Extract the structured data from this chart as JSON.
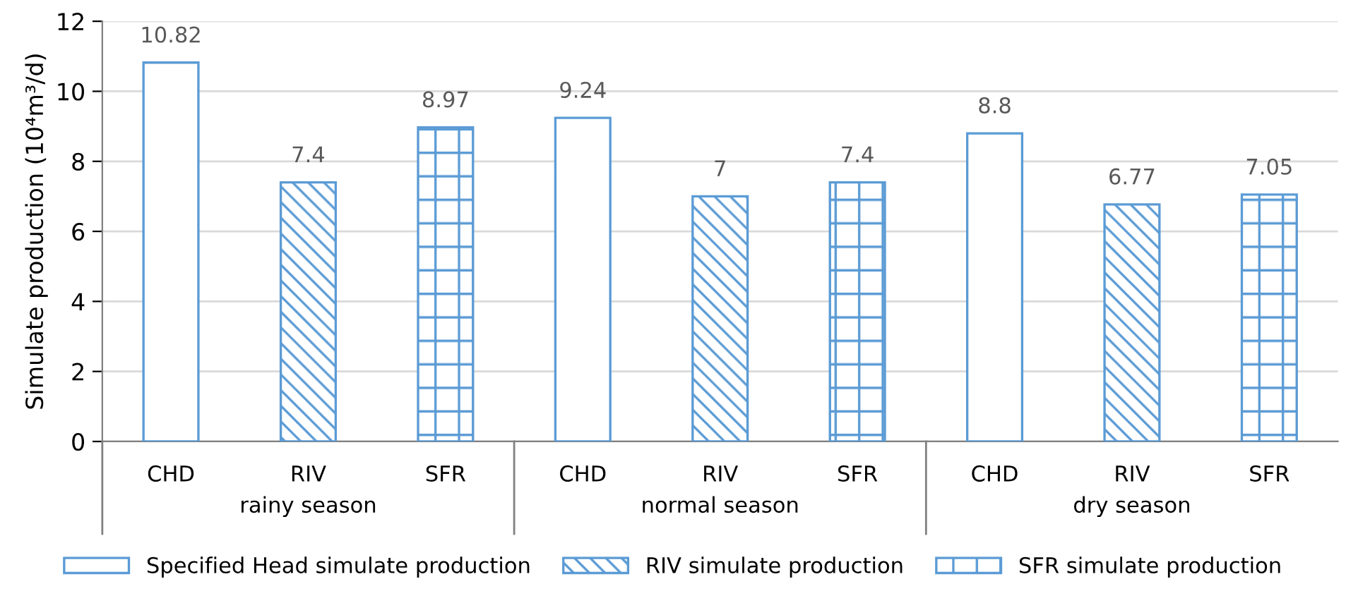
{
  "chart_data": {
    "type": "bar",
    "ylabel": "Simulate production (10⁴m³/d)",
    "categories": [
      "CHD",
      "RIV",
      "SFR",
      "CHD",
      "RIV",
      "SFR",
      "CHD",
      "RIV",
      "SFR"
    ],
    "series": [
      {
        "name": "Specified Head simulate production",
        "color": "#5b9bd5",
        "values": [
          10.82,
          null,
          null,
          9.24,
          null,
          null,
          8.8,
          null,
          null
        ]
      },
      {
        "name": "RIV simulate production",
        "color": "#5b9bd5",
        "values": [
          null,
          7.4,
          null,
          null,
          7,
          null,
          null,
          6.77,
          null
        ]
      },
      {
        "name": "SFR simulate production",
        "color": "#5b9bd5",
        "values": [
          null,
          null,
          8.97,
          null,
          null,
          7.4,
          null,
          null,
          7.05
        ]
      }
    ],
    "annotations": [
      "rainy season",
      "normal season",
      "dry season"
    ],
    "ylim": [
      0,
      12
    ],
    "yticks": [
      0,
      2,
      4,
      6,
      8,
      10,
      12
    ],
    "grid": "y",
    "legend": "bottom",
    "data_labels": true
  }
}
